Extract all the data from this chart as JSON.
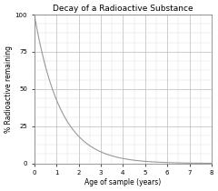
{
  "title": "Decay of a Radioactive Substance",
  "xlabel": "Age of sample (years)",
  "ylabel": "% Radioactive remaining",
  "xlim": [
    0,
    8
  ],
  "ylim": [
    0,
    100
  ],
  "x_ticks": [
    0,
    1,
    2,
    3,
    4,
    5,
    6,
    7,
    8
  ],
  "y_ticks": [
    0,
    25,
    50,
    75,
    100
  ],
  "decay_constant": 0.85,
  "line_color": "#999999",
  "grid_major_color": "#bbbbbb",
  "grid_minor_color": "#dddddd",
  "background_color": "#ffffff",
  "title_fontsize": 6.5,
  "label_fontsize": 5.5,
  "tick_fontsize": 5.0
}
